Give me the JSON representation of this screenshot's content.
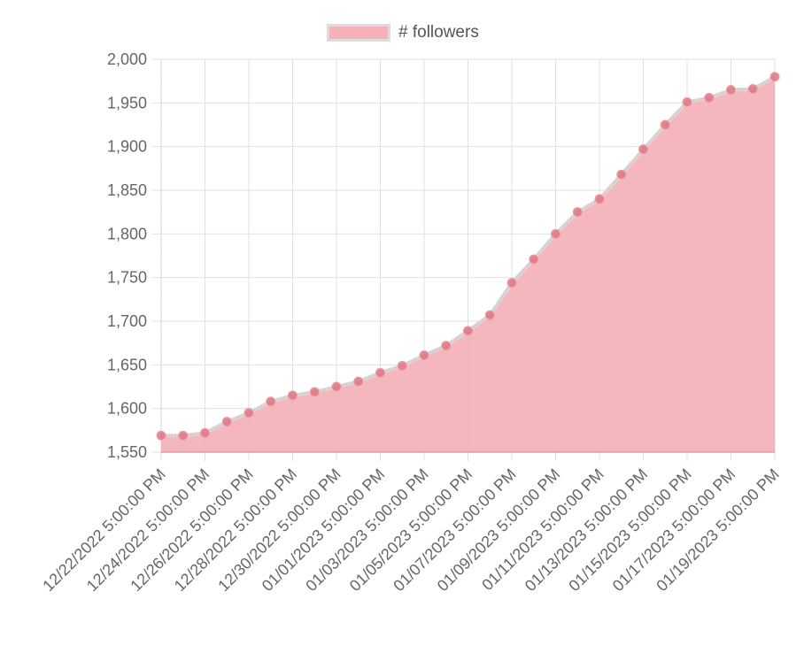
{
  "legend": {
    "label": "# followers"
  },
  "colors": {
    "fill": "#f4b1b8",
    "line": "#d9d9d9",
    "point": "#e0737f",
    "grid": "#e0e0e0",
    "text": "#666666"
  },
  "chart_data": {
    "type": "area",
    "title": "",
    "xlabel": "",
    "ylabel": "",
    "ylim": [
      1550,
      2000
    ],
    "yticks": [
      1550,
      1600,
      1650,
      1700,
      1750,
      1800,
      1850,
      1900,
      1950,
      2000
    ],
    "ytick_labels": [
      "1,550",
      "1,600",
      "1,650",
      "1,700",
      "1,750",
      "1,800",
      "1,850",
      "1,900",
      "1,950",
      "2,000"
    ],
    "grid": true,
    "legend_position": "top",
    "x": [
      "12/22/2022",
      "12/23/2022",
      "12/24/2022",
      "12/25/2022",
      "12/26/2022",
      "12/27/2022",
      "12/28/2022",
      "12/29/2022",
      "12/30/2022",
      "12/31/2022",
      "01/01/2023",
      "01/02/2023",
      "01/03/2023",
      "01/04/2023",
      "01/05/2023",
      "01/06/2023",
      "01/07/2023",
      "01/08/2023",
      "01/09/2023",
      "01/10/2023",
      "01/11/2023",
      "01/12/2023",
      "01/13/2023",
      "01/14/2023",
      "01/15/2023",
      "01/16/2023",
      "01/17/2023",
      "01/18/2023",
      "01/19/2023"
    ],
    "xtick_labels": [
      "12/22/2022 5:00:00 PM",
      "12/24/2022 5:00:00 PM",
      "12/26/2022 5:00:00 PM",
      "12/28/2022 5:00:00 PM",
      "12/30/2022 5:00:00 PM",
      "01/01/2023 5:00:00 PM",
      "01/03/2023 5:00:00 PM",
      "01/05/2023 5:00:00 PM",
      "01/07/2023 5:00:00 PM",
      "01/09/2023 5:00:00 PM",
      "01/11/2023 5:00:00 PM",
      "01/13/2023 5:00:00 PM",
      "01/15/2023 5:00:00 PM",
      "01/17/2023 5:00:00 PM",
      "01/19/2023 5:00:00 PM"
    ],
    "series": [
      {
        "name": "# followers",
        "values": [
          1569,
          1569,
          1572,
          1585,
          1595,
          1608,
          1615,
          1619,
          1625,
          1631,
          1641,
          1649,
          1661,
          1672,
          1689,
          1707,
          1744,
          1771,
          1800,
          1825,
          1840,
          1868,
          1897,
          1925,
          1951,
          1956,
          1965,
          1966,
          1980
        ]
      }
    ]
  }
}
